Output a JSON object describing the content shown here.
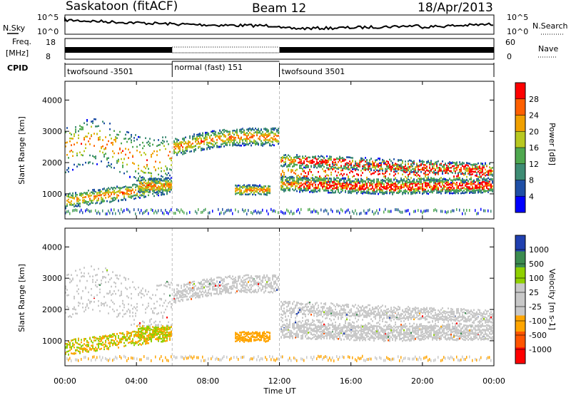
{
  "header": {
    "station": "Saskatoon (fitACF)",
    "beam": "Beam 12",
    "date": "18/Apr/2013"
  },
  "noise_panel": {
    "left_label": "N.Sky",
    "right_label": "N.Search",
    "left_ticks": [
      "10^5",
      "10^0"
    ],
    "right_ticks": [
      "10^5",
      "10^0"
    ]
  },
  "freq_panel": {
    "left_label_1": "Freq.",
    "left_label_2": "[MHz]",
    "left_ticks": [
      "18",
      "8"
    ],
    "right_label": "Nave",
    "right_ticks": [
      "60",
      "0"
    ]
  },
  "cpid": {
    "label": "CPID",
    "segments": [
      {
        "name": "twofsound -3501",
        "start_h": 0,
        "end_h": 6
      },
      {
        "name": "normal (fast) 151",
        "start_h": 6,
        "end_h": 12
      },
      {
        "name": "twofsound 3501",
        "start_h": 12,
        "end_h": 24
      }
    ]
  },
  "power_panel": {
    "ylabel": "Slant Range [km]",
    "colorbar_label": "Power [dB]",
    "colorbar_ticks": [
      "28",
      "24",
      "20",
      "16",
      "12",
      "8",
      "4"
    ]
  },
  "velocity_panel": {
    "ylabel": "Slant Range [km]",
    "colorbar_label": "Velocity [m s-1]",
    "colorbar_ticks": [
      "1000",
      "500",
      "100",
      "25",
      "-25",
      "-100",
      "-500",
      "-1000"
    ]
  },
  "xaxis": {
    "label": "Time UT",
    "ticks": [
      "00:00",
      "04:00",
      "08:00",
      "12:00",
      "16:00",
      "20:00",
      "00:00"
    ]
  },
  "chart_data": {
    "type": "heatmap",
    "x_range_hours": [
      0,
      24
    ],
    "y_range_km": [
      200,
      4600
    ],
    "y_ticks": [
      1000,
      2000,
      3000,
      4000
    ],
    "power_colors": [
      "#0000ff",
      "#1f4fa6",
      "#3e8c74",
      "#4fa84f",
      "#b8c820",
      "#f0a000",
      "#ff6000",
      "#ff0000"
    ],
    "velocity_colors": [
      "#ff0000",
      "#ff5500",
      "#ffa500",
      "#c8c8c8",
      "#c8c8c8",
      "#8fd000",
      "#3c8c50",
      "#2040b0"
    ]
  }
}
